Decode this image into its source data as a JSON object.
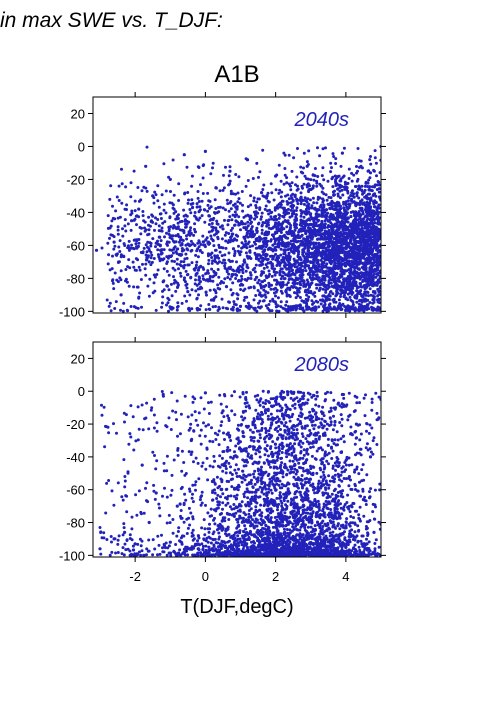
{
  "figure_title": "in max SWE vs. T_DJF:",
  "scenario_title": "A1B",
  "x_axis_label": "T(DJF,degC)",
  "marker_color": "#2222bb",
  "chart_data": [
    {
      "type": "scatter",
      "panel_label": "2040s",
      "xlim": [
        -3.2,
        5.0
      ],
      "ylim": [
        -101,
        30
      ],
      "xticks": [
        -2,
        0,
        2,
        4
      ],
      "yticks": [
        20,
        0,
        -20,
        -40,
        -60,
        -80,
        -100
      ],
      "ytick_labels": [
        "20",
        "0",
        "-20",
        "-40",
        "-60",
        "-80",
        "-100"
      ],
      "grid": false,
      "density_note": "dense cloud centred near x=2.5, y=-60; sparse toward x<0",
      "points": [
        [
          -3.1,
          -63
        ],
        [
          -2.6,
          -58
        ],
        [
          -2.4,
          -90
        ],
        [
          -2.1,
          -45
        ],
        [
          -1.9,
          -38
        ],
        [
          -1.7,
          -12
        ],
        [
          -1.6,
          -70
        ],
        [
          -1.5,
          -30
        ],
        [
          -1.3,
          -55
        ],
        [
          -1.2,
          -82
        ],
        [
          -1.0,
          -20
        ],
        [
          -0.9,
          -48
        ],
        [
          -0.7,
          -66
        ],
        [
          -0.6,
          -5
        ],
        [
          -0.5,
          -88
        ],
        [
          -0.4,
          -35
        ],
        [
          -0.3,
          -60
        ],
        [
          -0.2,
          -75
        ],
        [
          0.0,
          -3
        ],
        [
          0.1,
          -42
        ],
        [
          0.2,
          -93
        ],
        [
          0.3,
          -25
        ],
        [
          0.4,
          -70
        ],
        [
          0.5,
          -50
        ],
        [
          0.6,
          -85
        ],
        [
          0.7,
          -15
        ],
        [
          0.8,
          -62
        ],
        [
          0.9,
          -38
        ],
        [
          1.0,
          -97
        ],
        [
          1.1,
          -55
        ],
        [
          1.2,
          -8
        ],
        [
          1.3,
          -78
        ],
        [
          1.4,
          -44
        ],
        [
          1.5,
          -66
        ],
        [
          1.6,
          -28
        ],
        [
          1.7,
          -90
        ],
        [
          1.8,
          -52
        ],
        [
          1.9,
          -72
        ],
        [
          2.0,
          -18
        ],
        [
          2.1,
          -60
        ],
        [
          2.2,
          -84
        ],
        [
          2.3,
          -40
        ],
        [
          2.4,
          -98
        ],
        [
          2.5,
          -64
        ],
        [
          2.6,
          -32
        ],
        [
          2.7,
          -76
        ],
        [
          2.8,
          -56
        ],
        [
          2.9,
          -12
        ],
        [
          3.0,
          -88
        ],
        [
          3.1,
          -46
        ],
        [
          3.2,
          -70
        ],
        [
          3.3,
          -24
        ],
        [
          3.4,
          -94
        ],
        [
          3.5,
          -58
        ],
        [
          3.6,
          -36
        ],
        [
          3.7,
          -80
        ],
        [
          3.8,
          -50
        ],
        [
          3.9,
          -4
        ],
        [
          4.0,
          -68
        ],
        [
          4.1,
          -86
        ],
        [
          4.2,
          -30
        ],
        [
          4.3,
          -99
        ],
        [
          4.4,
          -62
        ],
        [
          4.5,
          -44
        ],
        [
          4.6,
          -78
        ],
        [
          4.7,
          -16
        ],
        [
          4.8,
          -92
        ],
        [
          4.9,
          -54
        ],
        [
          5.0,
          0
        ]
      ]
    },
    {
      "type": "scatter",
      "panel_label": "2080s",
      "xlim": [
        -3.2,
        5.0
      ],
      "ylim": [
        -101,
        30
      ],
      "xticks": [
        -2,
        0,
        2,
        4
      ],
      "xtick_labels": [
        "-2",
        "0",
        "2",
        "4"
      ],
      "yticks": [
        20,
        0,
        -20,
        -40,
        -60,
        -80,
        -100
      ],
      "ytick_labels": [
        "20",
        "0",
        "-20",
        "-40",
        "-60",
        "-80",
        "-100"
      ],
      "grid": false,
      "density_note": "dense cloud near y=-90 to -100 centred at x=2.5; scatter thins upward",
      "points": [
        [
          -3.0,
          -96
        ],
        [
          -2.6,
          -90
        ],
        [
          -2.3,
          -86
        ],
        [
          -2.0,
          -93
        ],
        [
          -1.8,
          -45
        ],
        [
          -1.6,
          -80
        ],
        [
          -1.4,
          -62
        ],
        [
          -1.2,
          -2
        ],
        [
          -1.0,
          -92
        ],
        [
          -0.8,
          -70
        ],
        [
          -0.6,
          -98
        ],
        [
          -0.4,
          -30
        ],
        [
          -0.2,
          -88
        ],
        [
          0.0,
          -1
        ],
        [
          0.1,
          -95
        ],
        [
          0.2,
          -55
        ],
        [
          0.4,
          -97
        ],
        [
          0.5,
          -12
        ],
        [
          0.6,
          -84
        ],
        [
          0.8,
          -99
        ],
        [
          0.9,
          -40
        ],
        [
          1.0,
          -92
        ],
        [
          1.1,
          -74
        ],
        [
          1.2,
          -22
        ],
        [
          1.3,
          -96
        ],
        [
          1.4,
          -88
        ],
        [
          1.5,
          -60
        ],
        [
          1.6,
          -99
        ],
        [
          1.7,
          -35
        ],
        [
          1.8,
          -91
        ],
        [
          1.9,
          -80
        ],
        [
          2.0,
          -6
        ],
        [
          2.1,
          -97
        ],
        [
          2.2,
          -50
        ],
        [
          2.3,
          -93
        ],
        [
          2.4,
          -28
        ],
        [
          2.5,
          -99
        ],
        [
          2.6,
          -70
        ],
        [
          2.7,
          -89
        ],
        [
          2.8,
          -44
        ],
        [
          2.9,
          -96
        ],
        [
          3.0,
          -15
        ],
        [
          3.1,
          -85
        ],
        [
          3.2,
          -98
        ],
        [
          3.3,
          -58
        ],
        [
          3.4,
          -92
        ],
        [
          3.5,
          -33
        ],
        [
          3.6,
          -97
        ],
        [
          3.7,
          -76
        ],
        [
          3.8,
          -90
        ],
        [
          3.9,
          -2
        ],
        [
          4.0,
          -95
        ],
        [
          4.1,
          -52
        ],
        [
          4.2,
          -88
        ],
        [
          4.3,
          -20
        ],
        [
          4.4,
          -98
        ],
        [
          4.5,
          -66
        ],
        [
          4.6,
          -93
        ],
        [
          4.7,
          -40
        ],
        [
          4.8,
          -86
        ],
        [
          4.9,
          -99
        ],
        [
          5.0,
          -5
        ]
      ]
    }
  ]
}
